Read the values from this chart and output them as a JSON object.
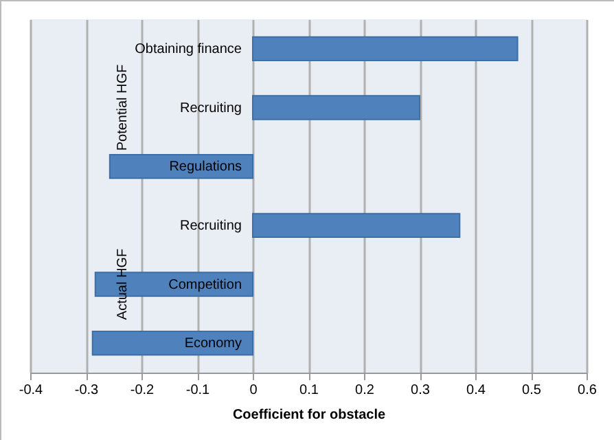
{
  "chart_data": {
    "type": "bar",
    "orientation": "horizontal",
    "xlabel": "Coefficient for obstacle",
    "categories": [
      "Obtaining finance",
      "Recruiting",
      "Regulations",
      "Recruiting",
      "Competition",
      "Economy"
    ],
    "values": [
      0.476,
      0.3,
      -0.257,
      0.372,
      -0.283,
      -0.288
    ],
    "color": "#4f81bd",
    "xlim": [
      -0.4,
      0.6
    ],
    "xticks": [
      -0.4,
      -0.3,
      -0.2,
      -0.1,
      0,
      0.1,
      0.2,
      0.3,
      0.4,
      0.5,
      0.6
    ],
    "grid": "x",
    "annotations": [
      "Potential HGF",
      "Actual HGF"
    ]
  }
}
